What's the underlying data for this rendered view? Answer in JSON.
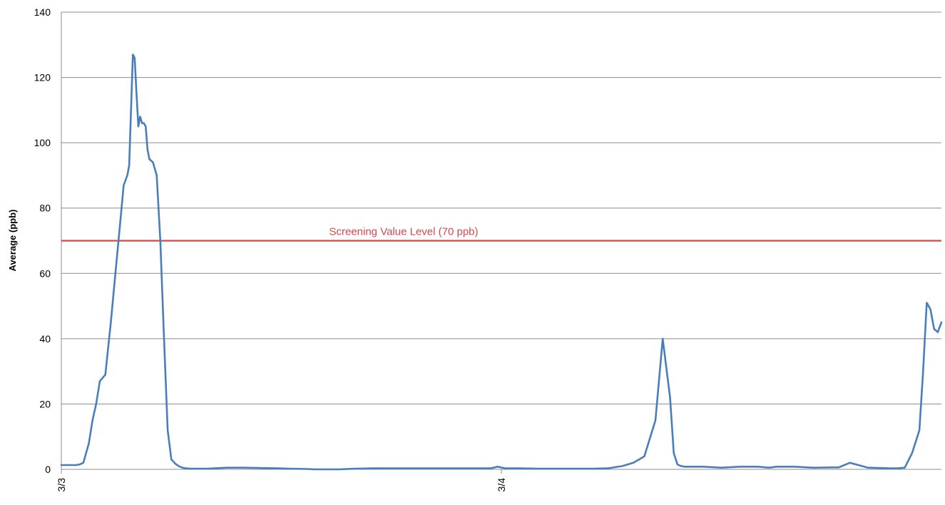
{
  "chart_data": {
    "type": "line",
    "title": "",
    "xlabel": "",
    "ylabel": "Average (ppb)",
    "ylim": [
      0,
      140
    ],
    "yticks": [
      0,
      20,
      40,
      60,
      80,
      100,
      120,
      140
    ],
    "xlim": [
      "3/3 00:00",
      "3/5 00:00"
    ],
    "xticks": [
      {
        "label": "3/3",
        "at": "3/3 00:00"
      },
      {
        "label": "3/4",
        "at": "3/4 00:00"
      }
    ],
    "grid": {
      "horizontal": true,
      "vertical": false
    },
    "colors": {
      "series": "#4a7ebb",
      "reference": "#d04a4a",
      "grid": "#8c8c8c"
    },
    "reference_line": {
      "value": 70,
      "label": "Screening Value Level  (70 ppb)"
    },
    "series": [
      {
        "x": [
          "3/3 00:00",
          "3/3 00:48",
          "3/3 01:00",
          "3/3 01:12",
          "3/3 01:30",
          "3/3 01:42",
          "3/3 01:54",
          "3/3 02:06",
          "3/3 02:24",
          "3/3 02:42",
          "3/3 03:00",
          "3/3 03:12",
          "3/3 03:24",
          "3/3 03:36",
          "3/3 03:42",
          "3/3 03:48",
          "3/3 03:54",
          "3/3 04:00",
          "3/3 04:06",
          "3/3 04:12",
          "3/3 04:18",
          "3/3 04:24",
          "3/3 04:30",
          "3/3 04:36",
          "3/3 04:42",
          "3/3 04:48",
          "3/3 05:00",
          "3/3 05:12",
          "3/3 05:24",
          "3/3 05:36",
          "3/3 05:48",
          "3/3 06:00",
          "3/3 06:06",
          "3/3 06:12",
          "3/3 06:24",
          "3/3 06:36",
          "3/3 06:48",
          "3/3 07:00",
          "3/3 07:12",
          "3/3 07:30",
          "3/3 08:00",
          "3/3 09:00",
          "3/3 10:00",
          "3/3 11:48",
          "3/3 12:24",
          "3/3 13:24",
          "3/3 13:48",
          "3/3 14:24",
          "3/3 15:12",
          "3/3 16:00",
          "3/3 17:00",
          "3/3 18:00",
          "3/3 20:00",
          "3/3 22:00",
          "3/3 23:24",
          "3/3 23:48",
          "3/4 00:12",
          "3/4 01:00",
          "3/4 02:00",
          "3/4 03:00",
          "3/4 04:00",
          "3/4 05:00",
          "3/4 05:48",
          "3/4 06:36",
          "3/4 07:12",
          "3/4 07:48",
          "3/4 08:24",
          "3/4 08:48",
          "3/4 09:12",
          "3/4 09:24",
          "3/4 09:36",
          "3/4 09:48",
          "3/4 10:00",
          "3/4 10:24",
          "3/4 11:00",
          "3/4 12:00",
          "3/4 13:00",
          "3/4 14:00",
          "3/4 14:36",
          "3/4 15:00",
          "3/4 16:00",
          "3/4 17:00",
          "3/4 18:00",
          "3/4 18:24",
          "3/4 19:00",
          "3/4 20:00",
          "3/4 21:12",
          "3/4 21:36",
          "3/4 22:00",
          "3/4 22:24",
          "3/4 22:48",
          "3/4 23:00",
          "3/4 23:12",
          "3/4 23:24",
          "3/4 23:36",
          "3/4 23:48",
          "3/5 00:00"
        ],
        "y": [
          1.3,
          1.3,
          1.5,
          2,
          8,
          15,
          20,
          27,
          29,
          45,
          63,
          75,
          87,
          90,
          93,
          110,
          127,
          126,
          115,
          105,
          108,
          106,
          106,
          105,
          98,
          95,
          94,
          90,
          70,
          40,
          12,
          3,
          2.5,
          1.8,
          1,
          0.5,
          0.3,
          0.2,
          0.2,
          0.2,
          0.2,
          0.5,
          0.5,
          0.3,
          0.2,
          0.1,
          0,
          0,
          0,
          0.2,
          0.3,
          0.3,
          0.3,
          0.3,
          0.3,
          0.8,
          0.3,
          0.3,
          0.2,
          0.2,
          0.2,
          0.2,
          0.3,
          1,
          2,
          4,
          15,
          40,
          22,
          5,
          1.5,
          1,
          0.8,
          0.8,
          0.8,
          0.5,
          0.8,
          0.8,
          0.5,
          0.8,
          0.8,
          0.5,
          0.6,
          0.6,
          2,
          0.5,
          0.3,
          0.3,
          0.5,
          5,
          12,
          30,
          51,
          49,
          43,
          42,
          45
        ]
      }
    ]
  }
}
